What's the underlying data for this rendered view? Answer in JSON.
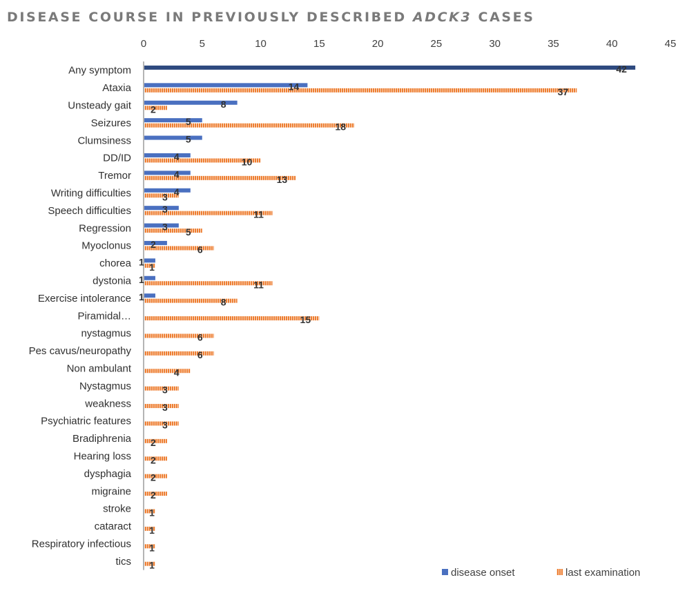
{
  "chart_data": {
    "type": "bar",
    "orientation": "horizontal",
    "title_parts": [
      {
        "text": "DISEASE COURSE IN PREVIOUSLY DESCRIBED ",
        "italic": false
      },
      {
        "text": "ADCK3",
        "italic": true
      },
      {
        "text": " CASES",
        "italic": false
      }
    ],
    "xlim": [
      0,
      45
    ],
    "x_ticks": [
      0,
      5,
      10,
      15,
      20,
      25,
      30,
      35,
      40,
      45
    ],
    "categories": [
      "Any symptom",
      "Ataxia",
      "Unsteady gait",
      "Seizures",
      "Clumsiness",
      "DD/ID",
      "Tremor",
      "Writing difficulties",
      "Speech difficulties",
      "Regression",
      "Myoclonus",
      "chorea",
      "dystonia",
      "Exercise intolerance",
      "Piramidal…",
      "nystagmus",
      "Pes cavus/neuropathy",
      "Non ambulant",
      "Nystagmus",
      "weakness",
      "Psychiatric features",
      "Bradiphrenia",
      "Hearing loss",
      "dysphagia",
      "migraine",
      "stroke",
      "cataract",
      "Respiratory infectious",
      "tics"
    ],
    "series": [
      {
        "name": "disease onset",
        "color": "#4a70c0",
        "pattern": "solid",
        "values": [
          42,
          14,
          8,
          5,
          5,
          4,
          4,
          4,
          3,
          3,
          2,
          1,
          1,
          1,
          null,
          null,
          null,
          null,
          null,
          null,
          null,
          null,
          null,
          null,
          null,
          null,
          null,
          null,
          null
        ]
      },
      {
        "name": "last examination",
        "color": "#ed7d31",
        "pattern": "striped",
        "values": [
          null,
          37,
          2,
          18,
          null,
          10,
          13,
          3,
          11,
          5,
          6,
          1,
          11,
          8,
          15,
          6,
          6,
          4,
          3,
          3,
          3,
          2,
          2,
          2,
          2,
          1,
          1,
          1,
          1
        ]
      }
    ],
    "legend_position": "bottom-right",
    "grid": false
  }
}
